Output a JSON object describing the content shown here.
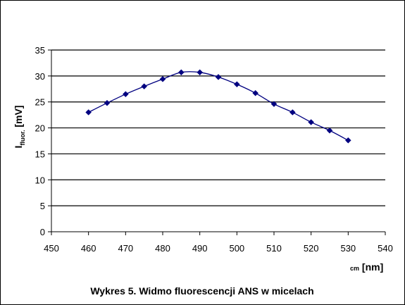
{
  "chart_data": {
    "type": "line",
    "title": "Wykres 5. Widmo fluorescencji ANS w micelach",
    "ylabel": {
      "main": "I",
      "subscript": "fluor.",
      "unit": " [mV]"
    },
    "xlabel": {
      "prefix": "cm",
      "unit": " [nm]"
    },
    "xlim": [
      450,
      540
    ],
    "ylim": [
      0,
      35
    ],
    "xticks": [
      "450",
      "460",
      "470",
      "480",
      "490",
      "500",
      "510",
      "520",
      "530",
      "540"
    ],
    "yticks": [
      "0",
      "5",
      "10",
      "15",
      "20",
      "25",
      "30",
      "35"
    ],
    "grid": "horizontal",
    "legend": "none",
    "series": [
      {
        "color": "#000080",
        "marker": "diamond",
        "x": [
          460,
          465,
          470,
          475,
          480,
          485,
          490,
          495,
          500,
          505,
          510,
          515,
          520,
          525,
          530
        ],
        "y": [
          23.0,
          24.8,
          26.5,
          28.0,
          29.4,
          30.7,
          30.7,
          29.8,
          28.4,
          26.7,
          24.6,
          23.0,
          21.1,
          19.5,
          17.6
        ]
      }
    ]
  }
}
